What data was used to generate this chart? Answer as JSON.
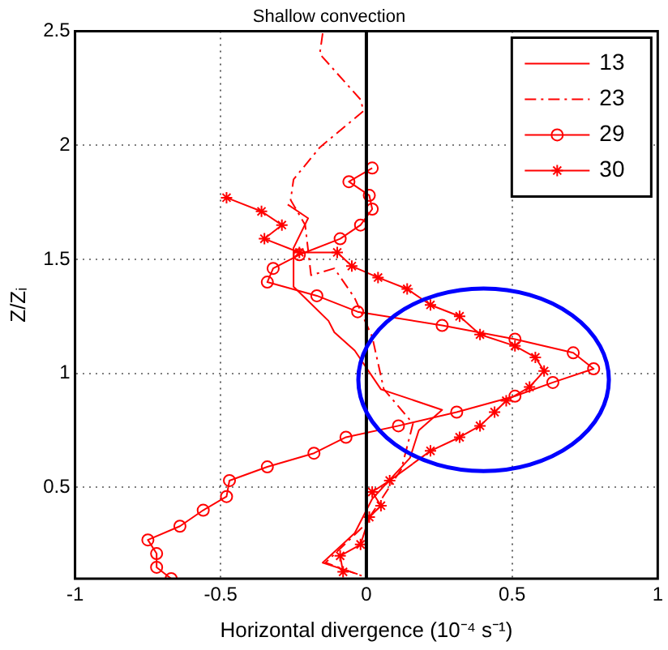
{
  "chart_data": {
    "type": "line",
    "title": "Shallow convection",
    "xlabel": "Horizontal divergence (10⁻⁴ s⁻¹)",
    "ylabel": "Z/Zᵢ",
    "xlim": [
      -1,
      1
    ],
    "xticks": [
      -1,
      -0.5,
      0,
      0.5,
      1
    ],
    "ylim": [
      0.1,
      2.5
    ],
    "yticks": [
      0.5,
      1,
      1.5,
      2,
      2.5
    ],
    "grid": true,
    "legend": "top right",
    "ref_lines": [
      {
        "axis": "x",
        "value": 0,
        "color": "#000000"
      }
    ],
    "series": [
      {
        "name": "13",
        "color": "#ff0000",
        "marker": "none",
        "line_style": "solid",
        "x": [
          -0.27,
          -0.2,
          -0.25,
          -0.25,
          -0.21,
          -0.13,
          -0.11,
          -0.04,
          0.05,
          0.26,
          0.18,
          0.15,
          0.02,
          -0.04,
          -0.15,
          -0.03
        ],
        "values": [
          1.74,
          1.68,
          1.55,
          1.38,
          1.33,
          1.23,
          1.18,
          1.1,
          0.93,
          0.84,
          0.75,
          0.63,
          0.45,
          0.3,
          0.17,
          0.12
        ]
      },
      {
        "name": "23",
        "color": "#ff0000",
        "marker": "none",
        "line_style": "dashed",
        "x": [
          -0.15,
          -0.16,
          -0.02,
          -0.01,
          -0.16,
          -0.25,
          -0.26,
          -0.21,
          -0.19,
          -0.11,
          -0.04,
          0.02,
          0.06,
          0.16,
          0.12,
          -0.01,
          -0.14,
          -0.01
        ],
        "values": [
          2.49,
          2.4,
          2.2,
          2.15,
          1.99,
          1.85,
          1.76,
          1.65,
          1.43,
          1.46,
          1.33,
          1.16,
          0.93,
          0.78,
          0.58,
          0.33,
          0.17,
          0.11
        ]
      },
      {
        "name": "29",
        "color": "#ff0000",
        "marker": "circle",
        "line_style": "solid",
        "x": [
          0.02,
          -0.06,
          0.01,
          0.02,
          -0.02,
          -0.09,
          -0.23,
          -0.32,
          -0.34,
          -0.17,
          -0.03,
          0.26,
          0.51,
          0.71,
          0.78,
          0.64,
          0.51,
          0.31,
          0.11,
          -0.07,
          -0.18,
          -0.34,
          -0.47,
          -0.48,
          -0.56,
          -0.64,
          -0.75,
          -0.72,
          -0.72,
          -0.67
        ],
        "values": [
          1.9,
          1.84,
          1.78,
          1.72,
          1.65,
          1.59,
          1.52,
          1.46,
          1.4,
          1.34,
          1.27,
          1.21,
          1.15,
          1.09,
          1.02,
          0.96,
          0.9,
          0.83,
          0.77,
          0.72,
          0.65,
          0.59,
          0.53,
          0.46,
          0.4,
          0.33,
          0.27,
          0.21,
          0.15,
          0.1
        ]
      },
      {
        "name": "30",
        "color": "#ff0000",
        "marker": "cross",
        "line_style": "solid",
        "x": [
          -0.48,
          -0.36,
          -0.29,
          -0.35,
          -0.23,
          -0.1,
          -0.05,
          0.04,
          0.14,
          0.22,
          0.32,
          0.39,
          0.51,
          0.58,
          0.61,
          0.56,
          0.48,
          0.44,
          0.39,
          0.32,
          0.22,
          0.08,
          0.02,
          0.05,
          0.01,
          -0.02,
          -0.09,
          -0.08
        ],
        "values": [
          1.77,
          1.71,
          1.65,
          1.59,
          1.53,
          1.53,
          1.47,
          1.42,
          1.37,
          1.3,
          1.25,
          1.17,
          1.12,
          1.07,
          1.01,
          0.94,
          0.88,
          0.83,
          0.77,
          0.72,
          0.66,
          0.53,
          0.48,
          0.42,
          0.37,
          0.25,
          0.2,
          0.13
        ]
      }
    ]
  }
}
